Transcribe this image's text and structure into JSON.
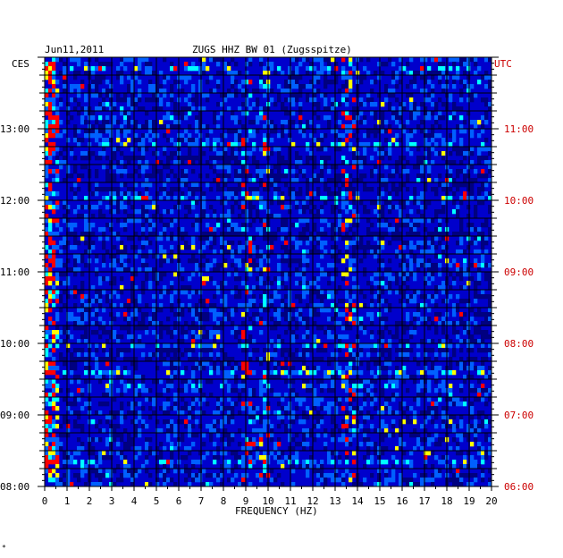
{
  "header": {
    "date": "Jun11,2011",
    "station": "ZUGS HHZ BW 01 (Zugsspitze)"
  },
  "chart_data": {
    "type": "heatmap",
    "title": "ZUGS HHZ BW 01 (Zugsspitze)",
    "date": "Jun11,2011",
    "xlabel": "FREQUENCY (HZ)",
    "left_label": "CES",
    "right_label": "UTC",
    "xlim": [
      0,
      20
    ],
    "x_ticks": [
      "0",
      "1",
      "2",
      "3",
      "4",
      "5",
      "6",
      "7",
      "8",
      "9",
      "10",
      "11",
      "12",
      "13",
      "14",
      "15",
      "16",
      "17",
      "18",
      "19",
      "20"
    ],
    "time_range_local": [
      "08:00",
      "13:50"
    ],
    "left_ticks": [
      "08:00",
      "09:00",
      "10:00",
      "11:00",
      "12:00",
      "13:00"
    ],
    "right_ticks": [
      "06:00",
      "07:00",
      "08:00",
      "09:00",
      "10:00",
      "11:00"
    ],
    "colormap": [
      "#000080",
      "#0000ff",
      "#00ffff",
      "#ffff00",
      "#ff0000"
    ],
    "hot_bands_hz": [
      0.3,
      9.0,
      9.8,
      13.6
    ],
    "grid": true
  },
  "colors": {
    "left_axis_text": "#000000",
    "right_axis_text": "#cc0000",
    "background": "#ffffff"
  },
  "footer": {
    "mark": "*"
  }
}
